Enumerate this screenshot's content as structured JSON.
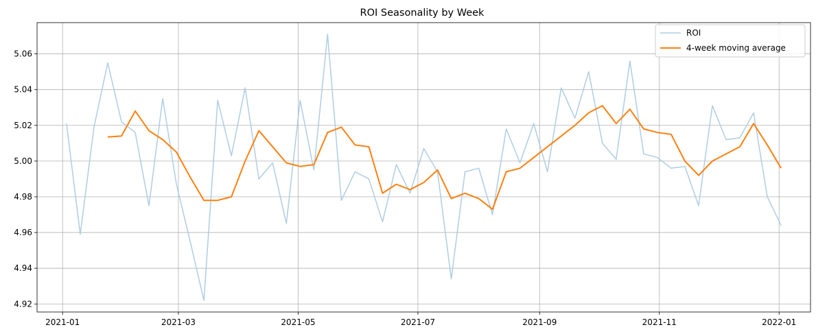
{
  "chart_data": {
    "type": "line",
    "title": "ROI Seasonality by Week",
    "xlabel": "",
    "ylabel": "",
    "x_ticks": [
      "2021-01",
      "2021-03",
      "2021-05",
      "2021-07",
      "2021-09",
      "2021-11",
      "2022-01"
    ],
    "y_ticks": [
      "4.92",
      "4.94",
      "4.96",
      "4.98",
      "5.00",
      "5.02",
      "5.04",
      "5.06"
    ],
    "xlim": [
      "2020-12-19",
      "2022-01-17"
    ],
    "ylim": [
      4.9155,
      5.0775
    ],
    "grid": true,
    "legend_position": "top-right",
    "x": [
      "2021-01-03",
      "2021-01-10",
      "2021-01-17",
      "2021-01-24",
      "2021-01-31",
      "2021-02-07",
      "2021-02-14",
      "2021-02-21",
      "2021-02-28",
      "2021-03-07",
      "2021-03-14",
      "2021-03-21",
      "2021-03-28",
      "2021-04-04",
      "2021-04-11",
      "2021-04-18",
      "2021-04-25",
      "2021-05-02",
      "2021-05-09",
      "2021-05-16",
      "2021-05-23",
      "2021-05-30",
      "2021-06-06",
      "2021-06-13",
      "2021-06-20",
      "2021-06-27",
      "2021-07-04",
      "2021-07-11",
      "2021-07-18",
      "2021-07-25",
      "2021-08-01",
      "2021-08-08",
      "2021-08-15",
      "2021-08-22",
      "2021-08-29",
      "2021-09-05",
      "2021-09-12",
      "2021-09-19",
      "2021-09-26",
      "2021-10-03",
      "2021-10-10",
      "2021-10-17",
      "2021-10-24",
      "2021-10-31",
      "2021-11-07",
      "2021-11-14",
      "2021-11-21",
      "2021-11-28",
      "2021-12-05",
      "2021-12-12",
      "2021-12-19",
      "2021-12-26",
      "2022-01-02"
    ],
    "series": [
      {
        "name": "ROI",
        "color": "#aecde2",
        "values": [
          5.021,
          4.959,
          5.019,
          5.055,
          5.022,
          5.016,
          4.975,
          5.035,
          4.987,
          4.955,
          4.922,
          5.034,
          5.003,
          5.041,
          4.99,
          4.999,
          4.965,
          5.034,
          4.995,
          5.071,
          4.978,
          4.994,
          4.99,
          4.966,
          4.998,
          4.982,
          5.007,
          4.994,
          4.934,
          4.994,
          4.996,
          4.97,
          5.018,
          4.999,
          5.021,
          4.994,
          5.041,
          5.024,
          5.05,
          5.01,
          5.001,
          5.056,
          5.004,
          5.002,
          4.996,
          4.997,
          4.975,
          5.031,
          5.012,
          5.013,
          5.027,
          4.98,
          4.964
        ]
      },
      {
        "name": "4-week moving average",
        "color": "#ff7f0e",
        "values": [
          null,
          null,
          null,
          5.0135,
          5.014,
          5.028,
          5.017,
          5.012,
          5.005,
          4.991,
          4.978,
          4.978,
          4.98,
          5.0,
          5.017,
          5.008,
          4.999,
          4.997,
          4.998,
          5.016,
          5.019,
          5.009,
          5.008,
          4.982,
          4.987,
          4.984,
          4.988,
          4.995,
          4.979,
          4.982,
          4.979,
          4.973,
          4.994,
          4.996,
          5.002,
          5.008,
          5.014,
          5.02,
          5.027,
          5.031,
          5.021,
          5.029,
          5.018,
          5.016,
          5.015,
          5.0,
          4.992,
          5.0,
          5.004,
          5.008,
          5.021,
          5.009,
          4.996
        ]
      }
    ]
  }
}
